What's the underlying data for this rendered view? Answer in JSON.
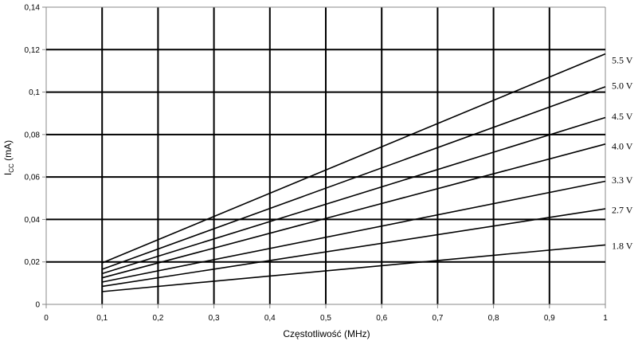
{
  "chart_data": {
    "type": "line",
    "xlabel": "Częstotliwość (MHz)",
    "ylabel_main": "I",
    "ylabel_sub": "CC",
    "ylabel_unit": " (mA)",
    "xlim": [
      0,
      1
    ],
    "ylim": [
      0,
      0.14
    ],
    "grid": true,
    "x_ticks": [
      "0",
      "0,1",
      "0,2",
      "0,3",
      "0,4",
      "0,5",
      "0,6",
      "0,7",
      "0,8",
      "0,9",
      "1"
    ],
    "y_ticks": [
      "0",
      "0,02",
      "0,04",
      "0,06",
      "0,08",
      "0,1",
      "0,12",
      "0,14"
    ],
    "x": [
      0.1,
      1
    ],
    "series": [
      {
        "name": "5.5 V",
        "values": [
          0.0195,
          0.118
        ]
      },
      {
        "name": "5.0 V",
        "values": [
          0.0165,
          0.1025
        ]
      },
      {
        "name": "4.5 V",
        "values": [
          0.0145,
          0.088
        ]
      },
      {
        "name": "4.0 V",
        "values": [
          0.0125,
          0.0755
        ]
      },
      {
        "name": "3.3 V",
        "values": [
          0.0105,
          0.058
        ]
      },
      {
        "name": "2.7 V",
        "values": [
          0.0085,
          0.045
        ]
      },
      {
        "name": "1.8 V",
        "values": [
          0.006,
          0.028
        ]
      }
    ],
    "series_label_positions": [
      0.115,
      0.103,
      0.0885,
      0.0745,
      0.0585,
      0.0445,
      0.0275
    ]
  }
}
